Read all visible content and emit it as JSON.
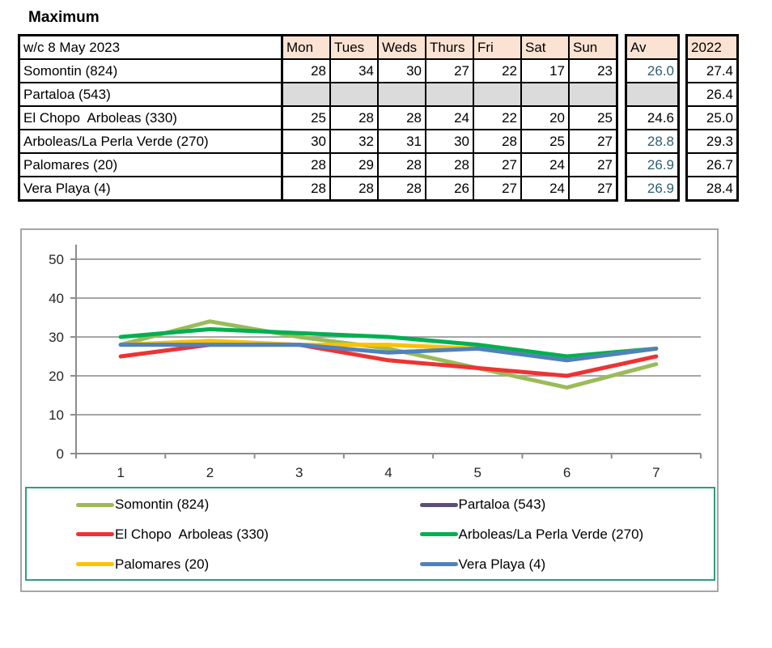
{
  "title": "Maximum",
  "table": {
    "week_label": "w/c 8 May 2023",
    "day_headers": [
      "Mon",
      "Tues",
      "Weds",
      "Thurs",
      "Fri",
      "Sat",
      "Sun"
    ],
    "av_header": "Av",
    "year_header": "2022",
    "rows": [
      {
        "name": "Somontin (824)",
        "values": [
          "28",
          "34",
          "30",
          "27",
          "22",
          "17",
          "23"
        ],
        "av": "26.0",
        "year": "27.4"
      },
      {
        "name": "Partaloa (543)",
        "values": [
          "",
          "",
          "",
          "",
          "",
          "",
          ""
        ],
        "av": "",
        "year": "26.4"
      },
      {
        "name": "El Chopo  Arboleas (330)",
        "values": [
          "25",
          "28",
          "28",
          "24",
          "22",
          "20",
          "25"
        ],
        "av": "24.6",
        "year": "25.0"
      },
      {
        "name": "Arboleas/La Perla Verde (270)",
        "values": [
          "30",
          "32",
          "31",
          "30",
          "28",
          "25",
          "27"
        ],
        "av": "28.8",
        "year": "29.3"
      },
      {
        "name": "Palomares (20)",
        "values": [
          "28",
          "29",
          "28",
          "28",
          "27",
          "24",
          "27"
        ],
        "av": "26.9",
        "year": "26.7"
      },
      {
        "name": "Vera Playa (4)",
        "values": [
          "28",
          "28",
          "28",
          "26",
          "27",
          "24",
          "27"
        ],
        "av": "26.9",
        "year": "28.4"
      }
    ]
  },
  "colors": {
    "header_bg": "#FBE3D4",
    "empty_cell_bg": "#DBDBDB",
    "av_text": "#2E5F6E",
    "table_border": "#000000",
    "chart_border": "#A6A6A6",
    "legend_border": "#2BA07C",
    "gridline": "#A6A6A6",
    "axis": "#8C8C8C",
    "tick_label": "#262626"
  },
  "chart_data": {
    "type": "line",
    "x": [
      1,
      2,
      3,
      4,
      5,
      6,
      7
    ],
    "series": [
      {
        "name": "Somontin (824)",
        "color": "#9BBB59",
        "values": [
          28,
          34,
          30,
          27,
          22,
          17,
          23
        ]
      },
      {
        "name": "Partaloa (543)",
        "color": "#5B4E77",
        "values": []
      },
      {
        "name": "El Chopo  Arboleas (330)",
        "color": "#ED3333",
        "values": [
          25,
          28,
          28,
          24,
          22,
          20,
          25
        ]
      },
      {
        "name": "Arboleas/La Perla Verde (270)",
        "color": "#00B050",
        "values": [
          30,
          32,
          31,
          30,
          28,
          25,
          27
        ]
      },
      {
        "name": "Palomares (20)",
        "color": "#FFC000",
        "values": [
          28,
          29,
          28,
          28,
          27,
          24,
          27
        ]
      },
      {
        "name": "Vera Playa (4)",
        "color": "#4F81BD",
        "values": [
          28,
          28,
          28,
          26,
          27,
          24,
          27
        ]
      }
    ],
    "title": "",
    "xlabel": "",
    "ylabel": "",
    "ylim": [
      0,
      50
    ],
    "yticks": [
      0,
      10,
      20,
      30,
      40,
      50
    ],
    "grid": true,
    "legend_position": "bottom"
  }
}
